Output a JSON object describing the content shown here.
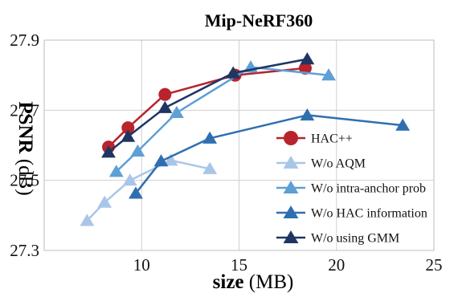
{
  "chart_data": {
    "type": "line",
    "title": "Mip-NeRF360",
    "xlabel_main": "size",
    "xlabel_unit": " (MB)",
    "ylabel_main": "PSNR",
    "ylabel_unit": " (dB)",
    "xlim": [
      5,
      25
    ],
    "ylim": [
      27.3,
      27.9
    ],
    "xticks": [
      10,
      15,
      20,
      25
    ],
    "yticks": [
      27.3,
      27.5,
      27.7,
      27.9
    ],
    "ytick_labels": [
      "27.3",
      "27.5",
      "27.7",
      "27.9"
    ],
    "grid": true,
    "legend_position": "right",
    "series": [
      {
        "name": "HAC++",
        "color": "#b8232c",
        "marker": "circle",
        "points": [
          [
            8.3,
            27.595
          ],
          [
            9.3,
            27.65
          ],
          [
            11.2,
            27.745
          ],
          [
            14.8,
            27.8
          ],
          [
            18.4,
            27.82
          ]
        ]
      },
      {
        "name": "W/o AQM",
        "color": "#a9c6e8",
        "marker": "triangle",
        "points": [
          [
            7.2,
            27.385
          ],
          [
            8.1,
            27.437
          ],
          [
            9.4,
            27.5
          ],
          [
            11.5,
            27.557
          ],
          [
            13.5,
            27.533
          ]
        ]
      },
      {
        "name": "W/o intra-anchor prob",
        "color": "#5e9fd6",
        "marker": "triangle",
        "points": [
          [
            8.7,
            27.525
          ],
          [
            9.8,
            27.583
          ],
          [
            11.8,
            27.693
          ],
          [
            15.6,
            27.823
          ],
          [
            19.6,
            27.8
          ]
        ]
      },
      {
        "name": "W/o HAC information",
        "color": "#2f6fb0",
        "marker": "triangle",
        "points": [
          [
            9.7,
            27.463
          ],
          [
            11.0,
            27.555
          ],
          [
            13.5,
            27.62
          ],
          [
            18.5,
            27.686
          ],
          [
            23.4,
            27.657
          ]
        ]
      },
      {
        "name": "W/o using GMM",
        "color": "#1f3563",
        "marker": "triangle",
        "points": [
          [
            8.3,
            27.58
          ],
          [
            9.3,
            27.625
          ],
          [
            11.2,
            27.707
          ],
          [
            14.7,
            27.806
          ],
          [
            18.5,
            27.846
          ]
        ]
      }
    ]
  }
}
